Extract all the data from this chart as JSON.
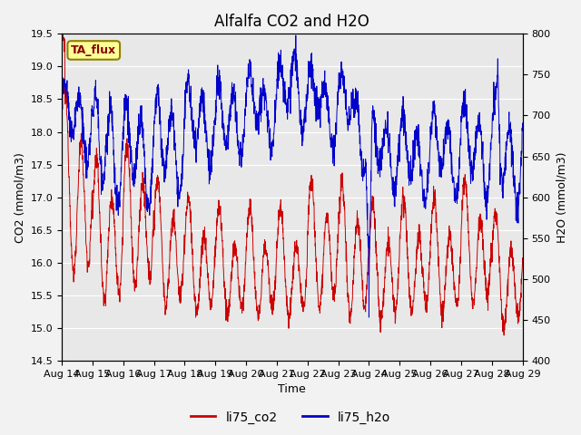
{
  "title": "Alfalfa CO2 and H2O",
  "xlabel": "Time",
  "ylabel_left": "CO2 (mmol/m3)",
  "ylabel_right": "H2O (mmol/m3)",
  "ylim_left": [
    14.5,
    19.5
  ],
  "ylim_right": [
    400,
    800
  ],
  "xlim": [
    0,
    2160
  ],
  "x_tick_positions": [
    0,
    144,
    288,
    432,
    576,
    720,
    864,
    1008,
    1152,
    1296,
    1440,
    1584,
    1728,
    1872,
    2016,
    2160
  ],
  "x_tick_labels": [
    "Aug 14",
    "Aug 15",
    "Aug 16",
    "Aug 17",
    "Aug 18",
    "Aug 19",
    "Aug 20",
    "Aug 21",
    "Aug 22",
    "Aug 23",
    "Aug 24",
    "Aug 25",
    "Aug 26",
    "Aug 27",
    "Aug 28",
    "Aug 29"
  ],
  "yticks_left": [
    14.5,
    15.0,
    15.5,
    16.0,
    16.5,
    17.0,
    17.5,
    18.0,
    18.5,
    19.0,
    19.5
  ],
  "yticks_right": [
    400,
    450,
    500,
    550,
    600,
    650,
    700,
    750,
    800
  ],
  "annotation_text": "TA_flux",
  "annotation_color": "#8B6914",
  "annotation_bg": "#FFFF99",
  "annotation_edge": "#8B8000",
  "line_co2_color": "#CC0000",
  "line_h2o_color": "#0000CC",
  "legend_co2": "li75_co2",
  "legend_h2o": "li75_h2o",
  "bg_color": "#E8E8E8",
  "fig_bg": "#F2F2F2",
  "grid_color": "#FFFFFF",
  "title_fontsize": 12,
  "label_fontsize": 9,
  "tick_fontsize": 8,
  "legend_fontsize": 10
}
